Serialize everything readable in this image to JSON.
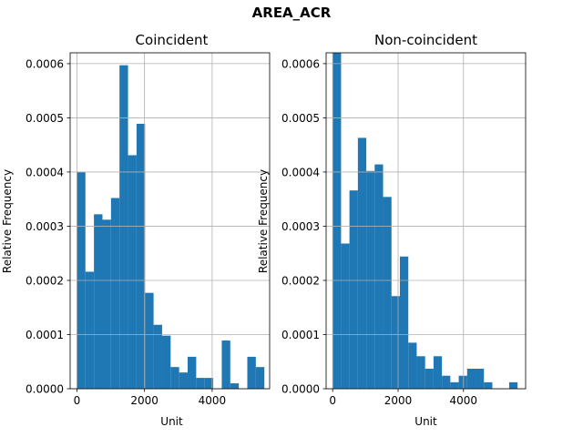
{
  "figure": {
    "title": "AREA_ACR"
  },
  "colors": {
    "bar": "#1f77b4",
    "grid": "#b0b0b0",
    "axis": "#000000"
  },
  "chart_data": [
    {
      "type": "bar",
      "title": "Coincident",
      "xlabel": "Unit",
      "ylabel": "Relative Frequency",
      "grid": true,
      "xlim": [
        -200,
        5700
      ],
      "ylim": [
        0,
        0.00062
      ],
      "xticks": [
        0,
        2000,
        4000
      ],
      "xtick_labels": [
        "0",
        "2000",
        "4000"
      ],
      "yticks": [
        0,
        0.0001,
        0.0002,
        0.0003,
        0.0004,
        0.0005,
        0.0006
      ],
      "ytick_labels": [
        "0.0000",
        "0.0001",
        "0.0002",
        "0.0003",
        "0.0004",
        "0.0005",
        "0.0006"
      ],
      "bin_start": 0,
      "bin_width": 252,
      "values": [
        0.0004,
        0.000216,
        0.000322,
        0.000312,
        0.000352,
        0.000597,
        0.000431,
        0.000489,
        0.000177,
        0.000118,
        9.8e-05,
        4e-05,
        3e-05,
        5.9e-05,
        2e-05,
        2e-05,
        0,
        8.9e-05,
        1e-05,
        0,
        5.9e-05,
        4e-05
      ]
    },
    {
      "type": "bar",
      "title": "Non-coincident",
      "xlabel": "Unit",
      "ylabel": "Relative Frequency",
      "grid": true,
      "xlim": [
        -200,
        5900
      ],
      "ylim": [
        0,
        0.00062
      ],
      "xticks": [
        0,
        2000,
        4000
      ],
      "xtick_labels": [
        "0",
        "2000",
        "4000"
      ],
      "yticks": [
        0,
        0.0001,
        0.0002,
        0.0003,
        0.0004,
        0.0005,
        0.0006
      ],
      "ytick_labels": [
        "0.0000",
        "0.0001",
        "0.0002",
        "0.0003",
        "0.0004",
        "0.0005",
        "0.0006"
      ],
      "bin_start": 0,
      "bin_width": 257,
      "values": [
        0.00062,
        0.000268,
        0.000366,
        0.000463,
        0.000402,
        0.000414,
        0.000354,
        0.000171,
        0.000244,
        8.5e-05,
        6e-05,
        3.7e-05,
        6e-05,
        2.4e-05,
        1.2e-05,
        2.4e-05,
        3.7e-05,
        3.7e-05,
        1.2e-05,
        0,
        0,
        1.2e-05
      ]
    }
  ]
}
